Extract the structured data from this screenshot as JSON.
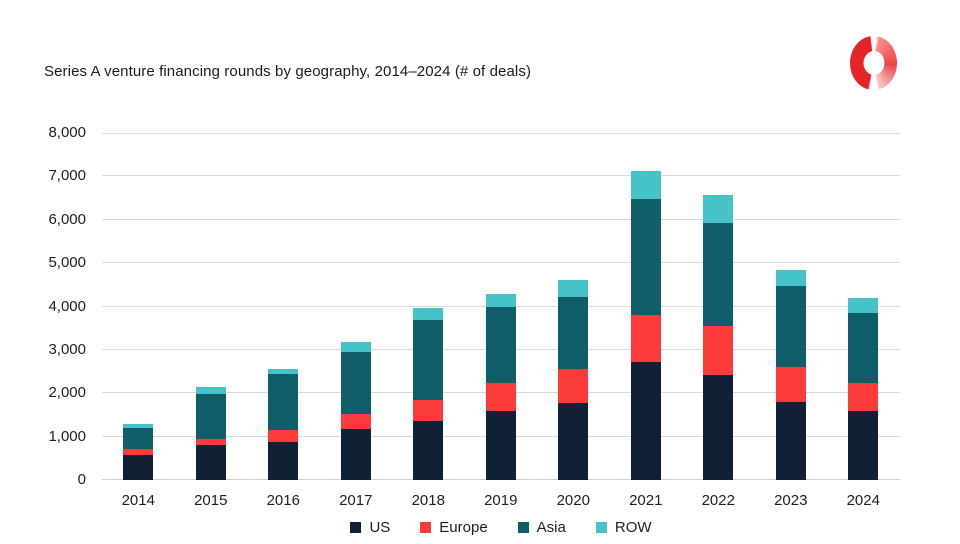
{
  "chart_data": {
    "type": "bar",
    "stacked": true,
    "title": "Series A venture financing rounds by geography, 2014–2024 (# of deals)",
    "categories": [
      "2014",
      "2015",
      "2016",
      "2017",
      "2018",
      "2019",
      "2020",
      "2021",
      "2022",
      "2023",
      "2024"
    ],
    "series": [
      {
        "name": "US",
        "color": "#102035",
        "values": [
          580,
          800,
          880,
          1170,
          1360,
          1600,
          1770,
          2730,
          2420,
          1810,
          1590
        ]
      },
      {
        "name": "Europe",
        "color": "#fb3a3a",
        "values": [
          125,
          155,
          270,
          350,
          485,
          630,
          790,
          1070,
          1120,
          800,
          640
        ]
      },
      {
        "name": "Asia",
        "color": "#0e5d69",
        "values": [
          505,
          1030,
          1290,
          1440,
          1845,
          1770,
          1660,
          2670,
          2380,
          1870,
          1610
        ]
      },
      {
        "name": "ROW",
        "color": "#46c2c9",
        "values": [
          90,
          165,
          130,
          215,
          270,
          300,
          390,
          660,
          650,
          360,
          350
        ]
      }
    ],
    "totals": [
      1300,
      2150,
      2570,
      3175,
      3960,
      4300,
      4610,
      7130,
      6570,
      4840,
      4190
    ],
    "xlabel": "",
    "ylabel": "",
    "ylim": [
      0,
      8000
    ],
    "ytick_interval": 1000,
    "ytick_labels": [
      "0",
      "1,000",
      "2,000",
      "3,000",
      "4,000",
      "5,000",
      "6,000",
      "7,000",
      "8,000"
    ],
    "grid": true,
    "gridline_color": "#dadada",
    "legend_position": "bottom",
    "legend_order": [
      "US",
      "Europe",
      "Asia",
      "ROW"
    ]
  },
  "branding": {
    "logo": {
      "icon": "split-donut-logo",
      "left_half_color": "#e5242a",
      "right_half_gradient_start": "#ee4347",
      "right_half_gradient_end": "#f9c6c6"
    }
  },
  "page": {
    "background_color": "#ffffff",
    "text_color": "#1f1f1f"
  }
}
